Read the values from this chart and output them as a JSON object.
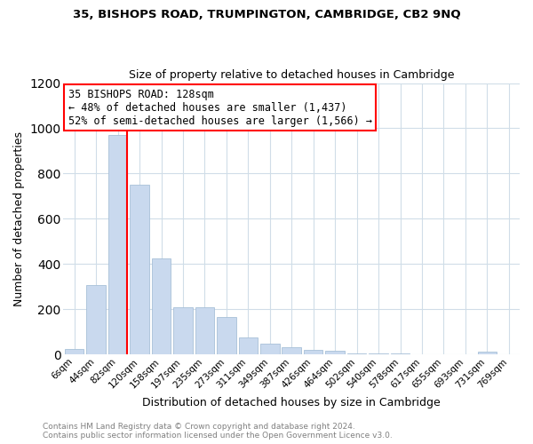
{
  "title": "35, BISHOPS ROAD, TRUMPINGTON, CAMBRIDGE, CB2 9NQ",
  "subtitle": "Size of property relative to detached houses in Cambridge",
  "xlabel": "Distribution of detached houses by size in Cambridge",
  "ylabel": "Number of detached properties",
  "bar_color": "#c9d9ee",
  "bar_edge_color": "#a8c0d8",
  "categories": [
    "6sqm",
    "44sqm",
    "82sqm",
    "120sqm",
    "158sqm",
    "197sqm",
    "235sqm",
    "273sqm",
    "311sqm",
    "349sqm",
    "387sqm",
    "426sqm",
    "464sqm",
    "502sqm",
    "540sqm",
    "578sqm",
    "617sqm",
    "655sqm",
    "693sqm",
    "731sqm",
    "769sqm"
  ],
  "values": [
    25,
    308,
    970,
    750,
    425,
    210,
    210,
    165,
    75,
    47,
    33,
    18,
    14,
    6,
    4,
    3,
    2,
    1,
    1,
    10,
    0
  ],
  "vline_bar_index": 2,
  "annotation_title": "35 BISHOPS ROAD: 128sqm",
  "annotation_line1": "← 48% of detached houses are smaller (1,437)",
  "annotation_line2": "52% of semi-detached houses are larger (1,566) →",
  "annotation_box_color": "white",
  "annotation_box_edge": "red",
  "vline_color": "red",
  "grid_color": "#d0dde8",
  "ylim": [
    0,
    1200
  ],
  "yticks": [
    0,
    200,
    400,
    600,
    800,
    1000,
    1200
  ],
  "footer1": "Contains HM Land Registry data © Crown copyright and database right 2024.",
  "footer2": "Contains public sector information licensed under the Open Government Licence v3.0."
}
